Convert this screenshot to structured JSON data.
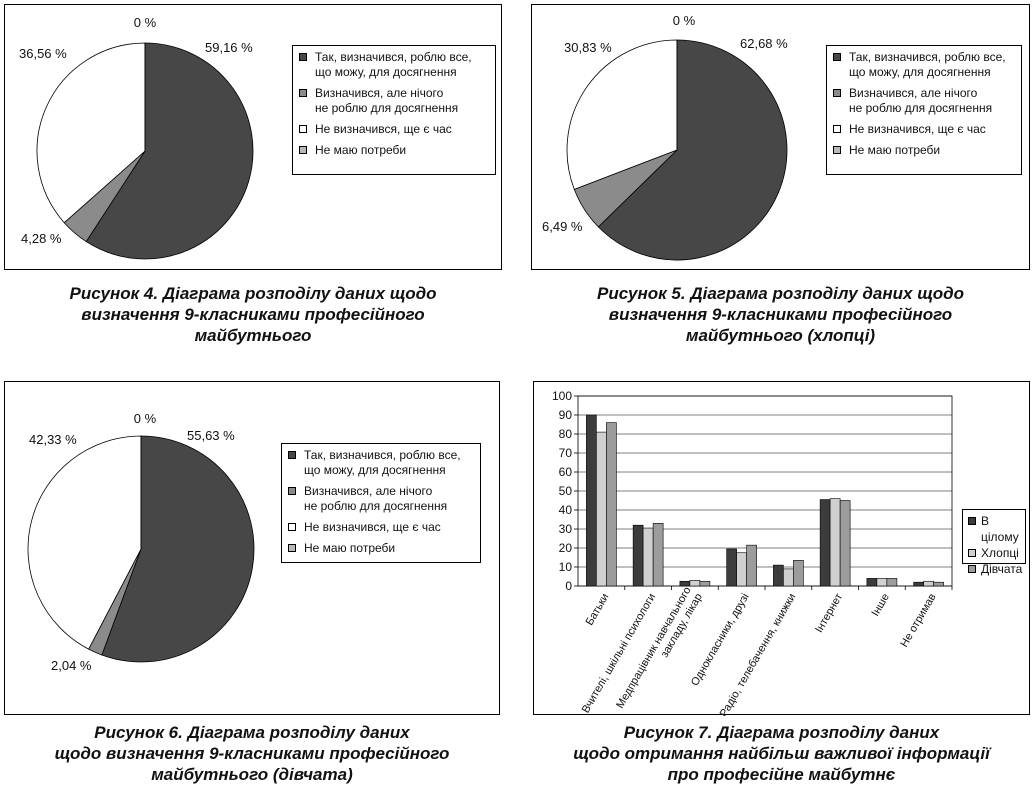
{
  "legend_labels": {
    "opt1_line1": "Так, визначився, роблю все,",
    "opt1_line2": "що можу, для досягнення",
    "opt2_line1": "Визначився, але нічого",
    "opt2_line2": "не роблю для досягнення",
    "opt3": "Не визначився, ще є час",
    "opt4": "Не маю потреби"
  },
  "colors": {
    "s1": "#474747",
    "s2": "#8b8b8b",
    "s3": "#ffffff",
    "s4": "#b9b9b9",
    "bar1": "#3c3c3c",
    "bar2": "#d0d0d0",
    "bar3": "#9c9c9c"
  },
  "captions": {
    "fig4": [
      "Рисунок 4. Діаграма розподілу даних щодо",
      "визначення 9-класниками професійного",
      "майбутнього"
    ],
    "fig5": [
      "Рисунок 5. Діаграма розподілу даних щодо",
      "визначення 9-класниками професійного",
      "майбутнього (хлопці)"
    ],
    "fig6": [
      "Рисунок 6. Діаграма розподілу даних",
      "щодо визначення 9-класниками професійного",
      "майбутнього (дівчата)"
    ],
    "fig7": [
      "Рисунок 7. Діаграма розподілу даних",
      "щодо отримання найбільш важливої інформації",
      "про професійне майбутнє"
    ]
  },
  "chart_data": [
    {
      "type": "pie",
      "slices": [
        {
          "label": "Так, визначився, роблю все, що можу, для досягнення",
          "value": 59.16,
          "text": "59,16 %"
        },
        {
          "label": "Визначився, але нічого не роблю для досягнення",
          "value": 4.28,
          "text": "4,28 %"
        },
        {
          "label": "Не визначився, ще є час",
          "value": 36.56,
          "text": "36,56 %"
        },
        {
          "label": "Не маю потреби",
          "value": 0,
          "text": "0 %"
        }
      ],
      "legend": "right"
    },
    {
      "type": "pie",
      "slices": [
        {
          "label": "Так, визначився, роблю все, що можу, для досягнення",
          "value": 62.68,
          "text": "62,68  %"
        },
        {
          "label": "Визначився, але нічого не роблю для досягнення",
          "value": 6.49,
          "text": "6,49 %"
        },
        {
          "label": "Не визначився, ще є час",
          "value": 30.83,
          "text": "30,83 %"
        },
        {
          "label": "Не маю потреби",
          "value": 0,
          "text": "0 %"
        }
      ],
      "legend": "right"
    },
    {
      "type": "pie",
      "slices": [
        {
          "label": "Так, визначився, роблю все, що можу, для досягнення",
          "value": 55.63,
          "text": "55,63 %"
        },
        {
          "label": "Визначився, але нічого не роблю для досягнення",
          "value": 2.04,
          "text": "2,04 %"
        },
        {
          "label": "Не визначився, ще є час",
          "value": 42.33,
          "text": "42,33 %"
        },
        {
          "label": "Не маю потреби",
          "value": 0,
          "text": "0 %"
        }
      ],
      "legend": "right"
    },
    {
      "type": "bar",
      "categories": [
        [
          "Батьки"
        ],
        [
          "Вчителі, шкільні психологи"
        ],
        [
          "Медпрацівник навчального",
          "закладу, лікар"
        ],
        [
          "Однокласники, друзі"
        ],
        [
          "Радіо, телебачення, книжки"
        ],
        [
          "Інтернет"
        ],
        [
          "Інше"
        ],
        [
          "Не отримав"
        ]
      ],
      "series": [
        {
          "name": "В цілому",
          "values": [
            90,
            32,
            2.5,
            19.5,
            11,
            45.5,
            4,
            2
          ]
        },
        {
          "name": "Хлопці",
          "values": [
            81,
            30.5,
            3,
            17.5,
            9,
            46,
            4,
            2.5
          ]
        },
        {
          "name": "Дівчата",
          "values": [
            86,
            33,
            2.5,
            21.5,
            13.5,
            45,
            4,
            2
          ]
        }
      ],
      "ylim": [
        0,
        100
      ],
      "yticks": [
        0,
        10,
        20,
        30,
        40,
        50,
        60,
        70,
        80,
        90,
        100
      ],
      "grid": true,
      "legend": "right"
    }
  ]
}
